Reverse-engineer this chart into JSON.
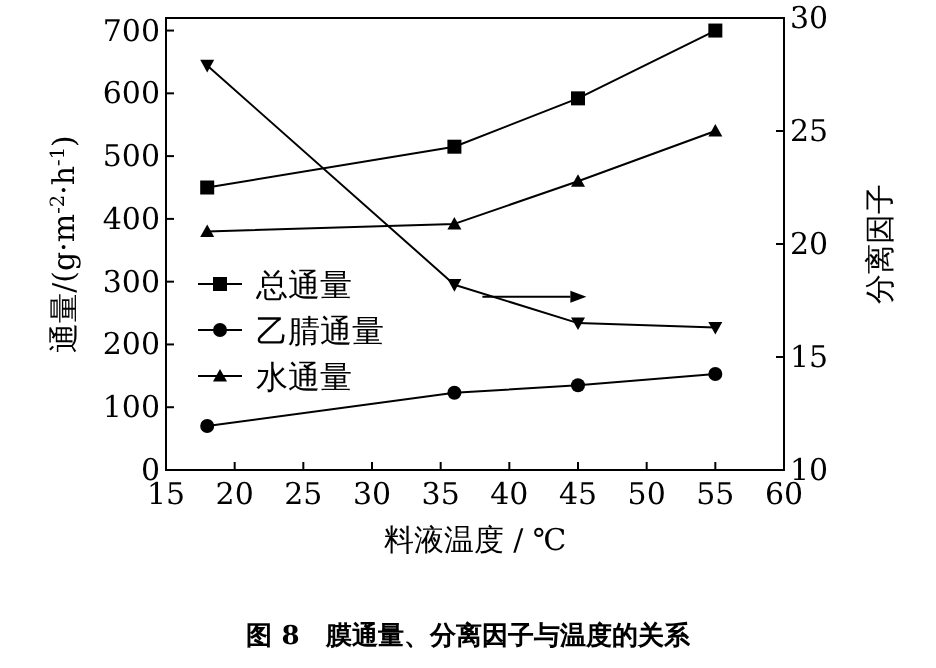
{
  "chart_data": {
    "type": "line",
    "title": "**图 8　膜通量、分离因子与温度的关系**",
    "xlabel": "料液温度 / ℃",
    "ylabel": "通量/(g·m$^{-2}$·h$^{-1}$)",
    "y2label": "分离因子",
    "x": [
      18,
      36,
      45,
      55
    ],
    "xlim": [
      15,
      60
    ],
    "xticks": [
      15,
      20,
      25,
      30,
      35,
      40,
      45,
      50,
      55,
      60
    ],
    "ylim": [
      0,
      720
    ],
    "yticks": [
      0,
      100,
      200,
      300,
      400,
      500,
      600,
      700
    ],
    "y2lim": [
      10,
      30
    ],
    "y2ticks": [
      10,
      15,
      20,
      25,
      30
    ],
    "series": [
      {
        "name": "总通量",
        "color": "#000000",
        "marker": "square",
        "values": [
          450,
          515,
          592,
          700
        ]
      },
      {
        "name": "乙腈通量",
        "color": "#000000",
        "marker": "circle",
        "values": [
          70,
          123,
          135,
          153
        ]
      },
      {
        "name": "水通量",
        "color": "#000000",
        "marker": "triangle",
        "values": [
          380,
          392,
          460,
          540
        ]
      },
      {
        "color": "#000000",
        "marker": "triangle-down",
        "axis": "y2",
        "values": [
          27.9,
          18.2,
          16.5,
          16.3
        ]
      }
    ],
    "legend": "left",
    "grid": false
  }
}
